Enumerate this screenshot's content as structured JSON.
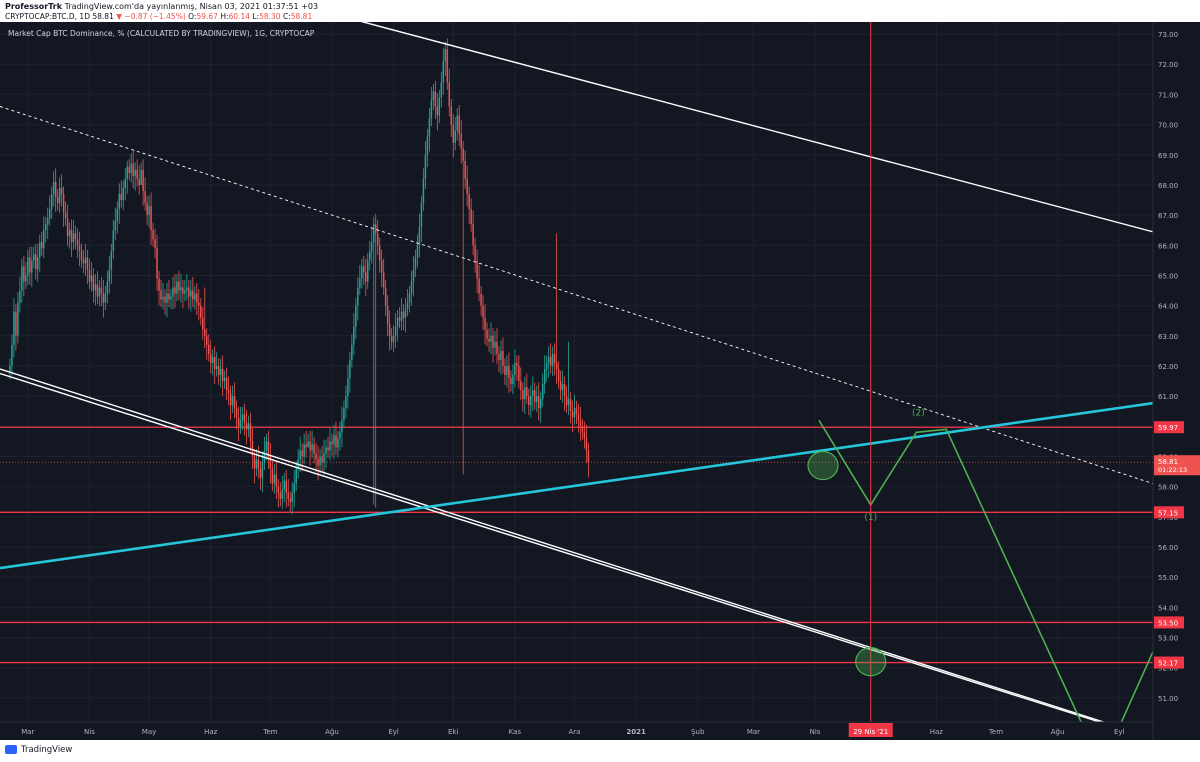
{
  "header": {
    "author": "ProfessorTrk",
    "publish_text": "TradingView.com'da yayınlanmış, Nisan 03, 2021 01:37:51 +03",
    "symbol_text": "CRYPTOCAP:BTC.D, 1D",
    "last": "58.81",
    "change": "−0.87 (−1.45%)",
    "ohlc": {
      "o_label": "O:",
      "o": "59.67",
      "h_label": "H:",
      "h": "60.14",
      "l_label": "L:",
      "l": "58.30",
      "c_label": "C:",
      "c": "58.81"
    }
  },
  "footer": {
    "logo_text": "TradingView"
  },
  "colors": {
    "background": "#131722",
    "grid": "#1e2230",
    "up": "#26a69a",
    "down": "#ef5350",
    "trendline": "#ffffff",
    "support": "#26c6da",
    "levels": "#f23645",
    "projection": "#4caf50"
  },
  "chart_data": {
    "type": "line",
    "title": "Market Cap BTC Dominance, % (CALCULATED BY TRADINGVIEW), 1G, CRYPTOCAP",
    "ylim": [
      50.2,
      73.4
    ],
    "y_ticks": [
      "51.00",
      "52.00",
      "53.00",
      "54.00",
      "55.00",
      "56.00",
      "57.00",
      "58.00",
      "59.00",
      "60.00",
      "61.00",
      "62.00",
      "63.00",
      "64.00",
      "65.00",
      "66.00",
      "67.00",
      "68.00",
      "69.00",
      "70.00",
      "71.00",
      "72.00",
      "73.00"
    ],
    "x_ticks": [
      "Mar",
      "Nis",
      "May",
      "Haz",
      "Tem",
      "Ağu",
      "Eyl",
      "Eki",
      "Kas",
      "Ara",
      "2021",
      "Şub",
      "Mar",
      "Nis",
      "Haz",
      "Tem",
      "Ağu",
      "Eyl"
    ],
    "x_tick_days": [
      0,
      31,
      61,
      92,
      122,
      153,
      184,
      214,
      245,
      275,
      306,
      337,
      365,
      396,
      457,
      487,
      518,
      549
    ],
    "xlim_days": [
      -14,
      566
    ],
    "series": [
      {
        "type": "candlestick",
        "x_start": "2020-02-21",
        "close": [
          62.0,
          62.7,
          63.8,
          63.0,
          64.1,
          64.5,
          65.3,
          64.8,
          65.0,
          65.6,
          65.1,
          65.5,
          65.7,
          65.2,
          65.6,
          66.1,
          65.9,
          66.5,
          66.7,
          66.9,
          67.2,
          67.7,
          68.1,
          67.6,
          67.4,
          67.9,
          67.7,
          67.1,
          66.9,
          66.3,
          66.5,
          66.1,
          66.4,
          66.2,
          66.0,
          65.8,
          65.5,
          65.4,
          65.6,
          65.2,
          64.8,
          65.0,
          64.5,
          64.7,
          64.3,
          64.6,
          64.4,
          64.1,
          64.4,
          64.8,
          65.2,
          65.8,
          66.5,
          66.8,
          67.2,
          67.7,
          67.5,
          67.9,
          68.2,
          68.6,
          68.4,
          68.7,
          68.3,
          68.5,
          68.2,
          68.0,
          68.5,
          67.8,
          67.4,
          67.0,
          67.3,
          66.5,
          66.2,
          65.9,
          64.9,
          64.5,
          64.2,
          64.3,
          64.1,
          64.4,
          64.2,
          64.3,
          64.6,
          64.4,
          64.8,
          64.5,
          64.6,
          64.4,
          64.5,
          64.6,
          64.3,
          64.5,
          64.2,
          64.4,
          64.1,
          64.0,
          63.6,
          63.2,
          63.0,
          62.7,
          62.4,
          62.1,
          62.3,
          61.9,
          62.0,
          61.7,
          61.9,
          61.5,
          61.6,
          61.2,
          61.1,
          60.7,
          61.0,
          60.6,
          60.3,
          60.0,
          60.2,
          60.4,
          60.1,
          59.9,
          60.1,
          59.5,
          59.0,
          58.6,
          58.9,
          58.6,
          58.3,
          58.8,
          59.2,
          59.5,
          59.0,
          58.6,
          58.1,
          58.4,
          58.0,
          57.8,
          57.6,
          57.9,
          58.2,
          57.8,
          57.6,
          57.5,
          57.8,
          58.1,
          58.6,
          58.9,
          59.2,
          59.0,
          59.4,
          59.3,
          59.5,
          59.2,
          59.4,
          59.1,
          58.9,
          58.7,
          59.0,
          58.8,
          59.1,
          59.3,
          59.2,
          59.5,
          59.4,
          59.7,
          59.3,
          59.6,
          59.8,
          60.2,
          60.6,
          61.0,
          61.6,
          62.2,
          62.7,
          63.3,
          64.0,
          64.6,
          64.9,
          65.3,
          65.1,
          64.8,
          65.5,
          65.8,
          66.1,
          66.7,
          66.4,
          66.0,
          65.5,
          65.1,
          64.6,
          64.0,
          63.4,
          63.0,
          62.8,
          63.0,
          63.3,
          63.6,
          63.5,
          63.8,
          63.6,
          63.9,
          64.1,
          64.4,
          64.8,
          65.2,
          65.6,
          66.0,
          66.6,
          67.4,
          68.2,
          69.0,
          69.6,
          70.2,
          70.8,
          71.1,
          70.6,
          70.3,
          70.9,
          71.4,
          72.1,
          72.5,
          71.4,
          70.6,
          70.0,
          69.4,
          69.8,
          70.3,
          69.7,
          69.2,
          68.8,
          68.2,
          67.7,
          67.2,
          66.7,
          66.0,
          65.5,
          64.9,
          64.4,
          64.0,
          63.6,
          63.2,
          62.9,
          62.8,
          63.0,
          62.6,
          62.8,
          62.4,
          62.2,
          62.5,
          62.0,
          61.7,
          62.0,
          61.6,
          61.4,
          61.7,
          62.1,
          62.0,
          61.5,
          61.2,
          60.9,
          61.3,
          61.0,
          60.7,
          61.0,
          61.2,
          60.8,
          61.0,
          60.6,
          60.9,
          61.4,
          61.9,
          62.1,
          62.3,
          62.0,
          62.4,
          62.1,
          61.9,
          61.5,
          61.2,
          61.4,
          61.0,
          60.7,
          60.9,
          60.5,
          60.3,
          60.6,
          60.4,
          60.2,
          60.0,
          59.8,
          59.6,
          59.2,
          58.8
        ],
        "spikes": [
          [
            59,
            68.8
          ],
          [
            66,
            68.3
          ],
          [
            98,
            64.6
          ],
          [
            150,
            59.5
          ],
          [
            183,
            57.4
          ],
          [
            184,
            57.3
          ],
          [
            228,
            58.4
          ],
          [
            275,
            66.4
          ],
          [
            281,
            62.8
          ],
          [
            306,
            73.3
          ],
          [
            310,
            71.3
          ],
          [
            330,
            63.3
          ],
          [
            340,
            60.3
          ],
          [
            350,
            60.0
          ],
          [
            370,
            63.2
          ]
        ]
      },
      {
        "name": "",
        "type": "level",
        "value": 59.97,
        "label": "59.97"
      },
      {
        "name": "",
        "type": "level",
        "value": 57.15,
        "label": "57.15"
      },
      {
        "name": "",
        "type": "level",
        "value": 53.5,
        "label": "53.50"
      },
      {
        "name": "",
        "type": "level",
        "value": 52.17,
        "label": "52.17"
      },
      {
        "name": "",
        "type": "price_line",
        "value": 58.81,
        "label": "58.81",
        "sublabel": "01:22:13"
      },
      {
        "name": "",
        "type": "trendline_upper",
        "points": [
          [
            "2020-08-11",
            73.5
          ],
          [
            "2021-10-02",
            66.2
          ]
        ]
      },
      {
        "name": "",
        "type": "trendline_dashed",
        "points": [
          [
            "2020-02-16",
            70.6
          ],
          [
            "2021-10-02",
            57.8
          ]
        ]
      },
      {
        "name": "",
        "type": "trendline_channel_lower",
        "points": [
          [
            "2020-02-16",
            61.9
          ],
          [
            "2021-09-01",
            50.0
          ]
        ]
      },
      {
        "name": "",
        "type": "trendline_channel_lower_2",
        "points": [
          [
            "2020-02-16",
            61.75
          ],
          [
            "2021-08-30",
            50.0
          ]
        ]
      },
      {
        "name": "",
        "type": "support_line",
        "points": [
          [
            "2020-02-16",
            55.3
          ],
          [
            "2021-10-02",
            60.9
          ]
        ]
      },
      {
        "name": "",
        "type": "projection",
        "points": [
          [
            "2021-04-03",
            60.2
          ],
          [
            "2021-04-29",
            57.4
          ],
          [
            "2021-05-22",
            59.8
          ],
          [
            "2021-06-06",
            59.9
          ],
          [
            "2021-08-14",
            50.0
          ],
          [
            "2021-09-01",
            50.0
          ],
          [
            "2021-09-28",
            54.0
          ]
        ]
      },
      {
        "name": "",
        "type": "vertical_marker",
        "date": "2021-04-29",
        "label": "29 Nis '21"
      }
    ],
    "annotations": [
      {
        "text": "(1)",
        "date": "2021-04-29",
        "y": 57.0
      },
      {
        "text": "(2)",
        "date": "2021-05-23",
        "y": 60.45
      }
    ],
    "ellipses": [
      {
        "date": "2021-04-05",
        "y": 58.7
      },
      {
        "date": "2021-04-29",
        "y": 52.2
      }
    ],
    "grid": true
  }
}
